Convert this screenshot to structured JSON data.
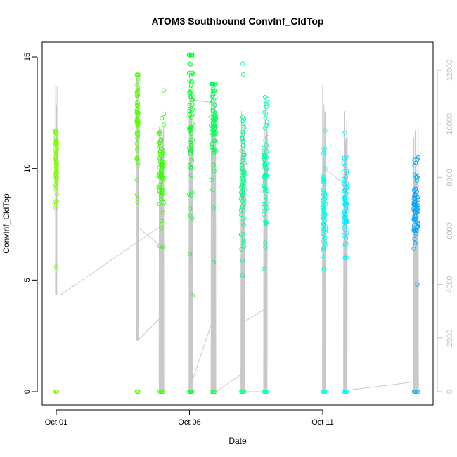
{
  "chart_data": {
    "type": "scatter",
    "title": "ATOM3 Southbound ConvInf_CldTop",
    "xlabel": "Date",
    "ylabel": "ConvInf_CldTop",
    "ylim": [
      0,
      15
    ],
    "y2lim": [
      0,
      12000
    ],
    "x_ticks": [
      "Oct 01",
      "Oct 06",
      "Oct 11"
    ],
    "x_tick_days": [
      1,
      6,
      11
    ],
    "xlim_days": [
      0.6,
      14.8
    ],
    "y_ticks": [
      "0",
      "5",
      "10",
      "15"
    ],
    "y2_ticks": [
      "0",
      "2000",
      "4000",
      "6000",
      "8000",
      "10000",
      "12000"
    ],
    "secondary_axis_color": "#bebebe",
    "altitude_line_color": "#c8c8c8",
    "grid": false,
    "clusters": [
      {
        "day": 1.0,
        "width": 0.06,
        "mean": 10.2,
        "spread": 1.0,
        "min": 5.6,
        "max": 11.7,
        "zeros": true,
        "color": "#7fff00"
      },
      {
        "day": 4.05,
        "width": 0.06,
        "mean": 12.3,
        "spread": 1.5,
        "min": 8.5,
        "max": 14.2,
        "zeros": true,
        "color": "#55ff00"
      },
      {
        "day": 4.95,
        "width": 0.18,
        "mean": 9.8,
        "spread": 1.4,
        "min": 6.5,
        "max": 13.5,
        "zeros": true,
        "color": "#33ff00"
      },
      {
        "day": 6.05,
        "width": 0.14,
        "mean": 12.0,
        "spread": 2.2,
        "min": 4.3,
        "max": 15.1,
        "zeros": true,
        "color": "#00ff22"
      },
      {
        "day": 6.9,
        "width": 0.18,
        "mean": 12.3,
        "spread": 1.4,
        "min": 5.8,
        "max": 13.8,
        "zeros": true,
        "color": "#00ff55"
      },
      {
        "day": 8.0,
        "width": 0.14,
        "mean": 9.6,
        "spread": 1.9,
        "min": 5.2,
        "max": 14.7,
        "zeros": true,
        "color": "#00ff88"
      },
      {
        "day": 8.85,
        "width": 0.14,
        "mean": 10.0,
        "spread": 1.4,
        "min": 5.5,
        "max": 13.2,
        "zeros": true,
        "color": "#00ffa8"
      },
      {
        "day": 11.05,
        "width": 0.12,
        "mean": 8.3,
        "spread": 1.2,
        "min": 5.5,
        "max": 11.7,
        "zeros": true,
        "color": "#00ffee"
      },
      {
        "day": 11.85,
        "width": 0.14,
        "mean": 8.3,
        "spread": 1.1,
        "min": 6.0,
        "max": 11.6,
        "zeros": true,
        "color": "#00eeff"
      },
      {
        "day": 14.5,
        "width": 0.18,
        "mean": 8.2,
        "spread": 0.9,
        "min": 4.8,
        "max": 10.5,
        "zeros": true,
        "color": "#00a6ff"
      }
    ],
    "altitude_legs": [
      {
        "day": 1.0,
        "width": 0.06,
        "peak_alt": 12000,
        "low_alt": 3600
      },
      {
        "day": 4.05,
        "width": 0.06,
        "peak_alt": 12000,
        "low_alt": 1900
      },
      {
        "day": 4.95,
        "width": 0.18,
        "peak_alt": 10200,
        "low_alt": 0
      },
      {
        "day": 6.05,
        "width": 0.14,
        "peak_alt": 12000,
        "low_alt": 0
      },
      {
        "day": 6.9,
        "width": 0.18,
        "peak_alt": 11200,
        "low_alt": 0
      },
      {
        "day": 8.0,
        "width": 0.14,
        "peak_alt": 11200,
        "low_alt": 0
      },
      {
        "day": 8.85,
        "width": 0.14,
        "peak_alt": 10800,
        "low_alt": 0
      },
      {
        "day": 11.05,
        "width": 0.12,
        "peak_alt": 11600,
        "low_alt": 0
      },
      {
        "day": 11.85,
        "width": 0.14,
        "peak_alt": 10500,
        "low_alt": 0
      },
      {
        "day": 14.5,
        "width": 0.18,
        "peak_alt": 10000,
        "low_alt": 0
      }
    ],
    "altitude_transits": [
      {
        "from_day": 1.15,
        "from_alt": 3600,
        "to_day": 4.95,
        "to_alt": 6200
      },
      {
        "from_day": 4.05,
        "from_alt": 1900,
        "to_day": 4.85,
        "to_alt": 2700
      },
      {
        "from_day": 4.05,
        "from_alt": 6150,
        "to_day": 4.85,
        "to_alt": 5500
      },
      {
        "from_day": 6.1,
        "from_alt": 10900,
        "to_day": 6.85,
        "to_alt": 10800
      },
      {
        "from_day": 6.0,
        "from_alt": 100,
        "to_day": 6.85,
        "to_alt": 2600
      },
      {
        "from_day": 7.0,
        "from_alt": 0,
        "to_day": 7.95,
        "to_alt": 650
      },
      {
        "from_day": 8.05,
        "from_alt": 2600,
        "to_day": 8.85,
        "to_alt": 3100
      },
      {
        "from_day": 8.1,
        "from_alt": 0,
        "to_day": 8.85,
        "to_alt": 0
      },
      {
        "from_day": 11.1,
        "from_alt": 8300,
        "to_day": 11.75,
        "to_alt": 7800
      },
      {
        "from_day": 11.9,
        "from_alt": 50,
        "to_day": 14.35,
        "to_alt": 350
      }
    ]
  }
}
